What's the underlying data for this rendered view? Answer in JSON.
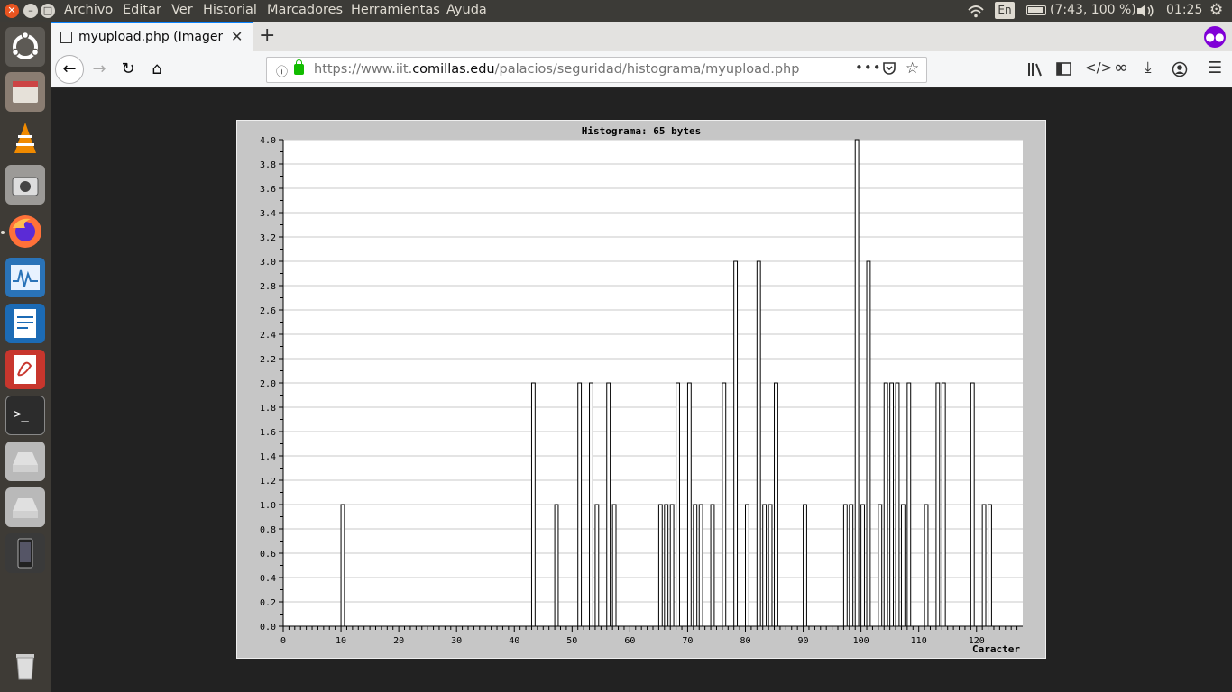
{
  "menubar": {
    "items": [
      "Archivo",
      "Editar",
      "Ver",
      "Historial",
      "Marcadores",
      "Herramientas",
      "Ayuda"
    ]
  },
  "tray": {
    "keyboard": "En",
    "battery": "(7:43, 100 %)",
    "clock": "01:25"
  },
  "launcher": {
    "icons": [
      "ubuntu-dash-icon",
      "files-icon",
      "vlc-icon",
      "screenshot-icon",
      "firefox-icon",
      "system-monitor-icon",
      "writer-icon",
      "document-viewer-icon",
      "terminal-icon",
      "drive-icon",
      "drive-icon",
      "phone-icon",
      "trash-icon"
    ]
  },
  "browser": {
    "tab_title": "myupload.php (Imagen PNG",
    "url_prefix": "https://www.iit.",
    "url_domain": "comillas.edu",
    "url_path": "/palacios/seguridad/histograma/myupload.php",
    "colors": {
      "accent": "#0a84ff",
      "lock": "#12bc00",
      "private": "#8000d7"
    }
  },
  "chart_data": {
    "type": "bar",
    "title": "Histograma: 65 bytes",
    "xlabel": "Caracter",
    "ylabel": "",
    "xlim": [
      0,
      127
    ],
    "ylim": [
      0,
      4
    ],
    "yticks": [
      "0.0",
      "0.2",
      "0.4",
      "0.6",
      "0.8",
      "1.0",
      "1.2",
      "1.4",
      "1.6",
      "1.8",
      "2.0",
      "2.2",
      "2.4",
      "2.6",
      "2.8",
      "3.0",
      "3.2",
      "3.4",
      "3.6",
      "3.8",
      "4.0"
    ],
    "xticks": [
      "0",
      "10",
      "20",
      "30",
      "40",
      "50",
      "60",
      "70",
      "80",
      "90",
      "100",
      "110",
      "120"
    ],
    "grid": true,
    "x": [
      10,
      43,
      47,
      51,
      53,
      54,
      56,
      57,
      65,
      66,
      67,
      68,
      70,
      71,
      72,
      74,
      76,
      78,
      80,
      82,
      83,
      84,
      85,
      90,
      97,
      98,
      99,
      100,
      101,
      103,
      104,
      105,
      106,
      107,
      108,
      111,
      113,
      114,
      119,
      121,
      122
    ],
    "values": [
      1,
      2,
      1,
      2,
      2,
      1,
      2,
      1,
      1,
      1,
      1,
      2,
      2,
      1,
      1,
      1,
      2,
      3,
      1,
      3,
      1,
      1,
      2,
      1,
      1,
      1,
      4,
      1,
      3,
      1,
      2,
      2,
      2,
      1,
      2,
      1,
      2,
      2,
      2,
      1,
      1
    ]
  }
}
